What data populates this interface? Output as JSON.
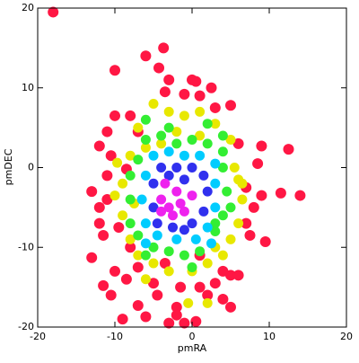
{
  "chart_data": {
    "type": "scatter",
    "x_label": "pmRA",
    "y_label": "pmDEC",
    "xlim": [
      -20,
      20
    ],
    "ylim": [
      -20,
      20
    ],
    "xticks": [
      -20,
      -10,
      0,
      10,
      20
    ],
    "yticks": [
      -20,
      -10,
      0,
      10,
      20
    ],
    "series": [
      {
        "color": "#ff1744",
        "x": [
          -18,
          -3.7,
          -6,
          -10,
          -4.3,
          0,
          0.5,
          -3,
          -3.5,
          2.5,
          1,
          -1,
          3,
          5,
          -8,
          -10,
          -7,
          -11,
          -12,
          -10.5,
          -8.5,
          -11,
          9,
          12.5,
          8.5,
          6,
          11.5,
          14,
          9,
          -13,
          -11,
          -12,
          -9.5,
          -11.5,
          -13,
          -11.5,
          -10.5,
          -9,
          -7,
          -6,
          -3,
          -1,
          0.5,
          -2,
          2,
          4,
          1,
          5,
          6,
          4,
          7.5,
          9.5,
          7,
          8,
          7,
          -3.5,
          -7,
          -8,
          1,
          -1.5,
          -4.5,
          -5,
          -8.5,
          -10,
          -2,
          3,
          5,
          -12
        ],
        "y": [
          19.5,
          15,
          14,
          12.2,
          12.5,
          11,
          10.8,
          11,
          9.5,
          10,
          9,
          9.2,
          7.5,
          7.8,
          6.5,
          6.5,
          4.5,
          4.5,
          2.7,
          1.5,
          -0.2,
          -1,
          2.7,
          2.3,
          0.5,
          3,
          -3.2,
          -3.5,
          -3.5,
          -3,
          -4,
          -7,
          -7.5,
          -8.5,
          -11.3,
          -14.8,
          -16,
          -19,
          -17.3,
          -18.7,
          -19.5,
          -19.5,
          -19.3,
          -17.5,
          -16,
          -16.5,
          -15,
          -13.5,
          -13.5,
          -13,
          -8.5,
          -9.3,
          -7,
          -5,
          -2.5,
          -12,
          -12.5,
          -10,
          -11,
          -15,
          -16,
          -14.5,
          -14,
          -13,
          -18.5,
          -14.5,
          -17.5,
          -5
        ]
      },
      {
        "color": "#e8e800",
        "x": [
          -5,
          -3,
          -1,
          1,
          3,
          -7,
          -6,
          5,
          5.5,
          -8,
          -9,
          -10,
          -9,
          6.5,
          6,
          6,
          5,
          -8,
          -7,
          -5,
          -3,
          0,
          2,
          3,
          4,
          -2,
          1,
          -7.5,
          6.5,
          -6,
          2,
          -0.5,
          -9.7,
          -4
        ],
        "y": [
          8,
          7,
          6.5,
          7,
          5.5,
          5,
          2.5,
          3.5,
          0,
          1.5,
          -2,
          -3.5,
          -6,
          -4,
          -1.5,
          -7,
          -9,
          -9,
          -11,
          -12,
          -13,
          -13,
          -12,
          -10,
          -11,
          4.5,
          4,
          -4.5,
          -2,
          -14,
          -17,
          -17,
          0.6,
          3
        ]
      },
      {
        "color": "#33ee33",
        "x": [
          -6,
          -4,
          -2,
          0,
          2,
          4,
          -7,
          -8,
          -8,
          -8,
          -7,
          -5,
          -3,
          -1,
          1,
          3,
          4,
          4.5,
          4,
          5,
          -3,
          2,
          -6,
          0,
          3,
          -6,
          4
        ],
        "y": [
          3.5,
          4,
          3,
          3.5,
          3,
          2,
          1,
          -1,
          -4,
          -7,
          -8.5,
          -10,
          -10.5,
          -11,
          -10.5,
          -8,
          -6,
          -3,
          0,
          -5,
          5,
          5.5,
          -11,
          -12.5,
          -7,
          6,
          4
        ]
      },
      {
        "color": "#00ccff",
        "x": [
          -5,
          -3,
          -1,
          1,
          3,
          -6,
          -6.5,
          -6,
          -4.5,
          -2,
          0.5,
          2,
          3,
          3,
          -6,
          2.5
        ],
        "y": [
          1.5,
          2,
          1.5,
          1.5,
          0.5,
          -1,
          -4,
          -7,
          -8.5,
          -9,
          -9,
          -7.5,
          -5,
          -2,
          -9.5,
          -9.5
        ]
      },
      {
        "color": "#3030ee",
        "x": [
          -4,
          -2,
          0,
          1.5,
          -5,
          -5,
          -4.5,
          -2.5,
          0,
          1.5,
          2,
          -3,
          -1,
          -1
        ],
        "y": [
          0,
          0,
          0,
          -1,
          -2,
          -5,
          -7,
          -7.5,
          -7,
          -5.5,
          -3,
          -1,
          -1.5,
          -7.8
        ]
      },
      {
        "color": "#ee22ee",
        "x": [
          -3.5,
          -2,
          -4,
          -3,
          -1.5,
          -2.5,
          0,
          -4,
          -1
        ],
        "y": [
          -2,
          -3,
          -4,
          -5,
          -4.5,
          -6,
          -3.5,
          -5.5,
          -5.5
        ]
      }
    ]
  }
}
